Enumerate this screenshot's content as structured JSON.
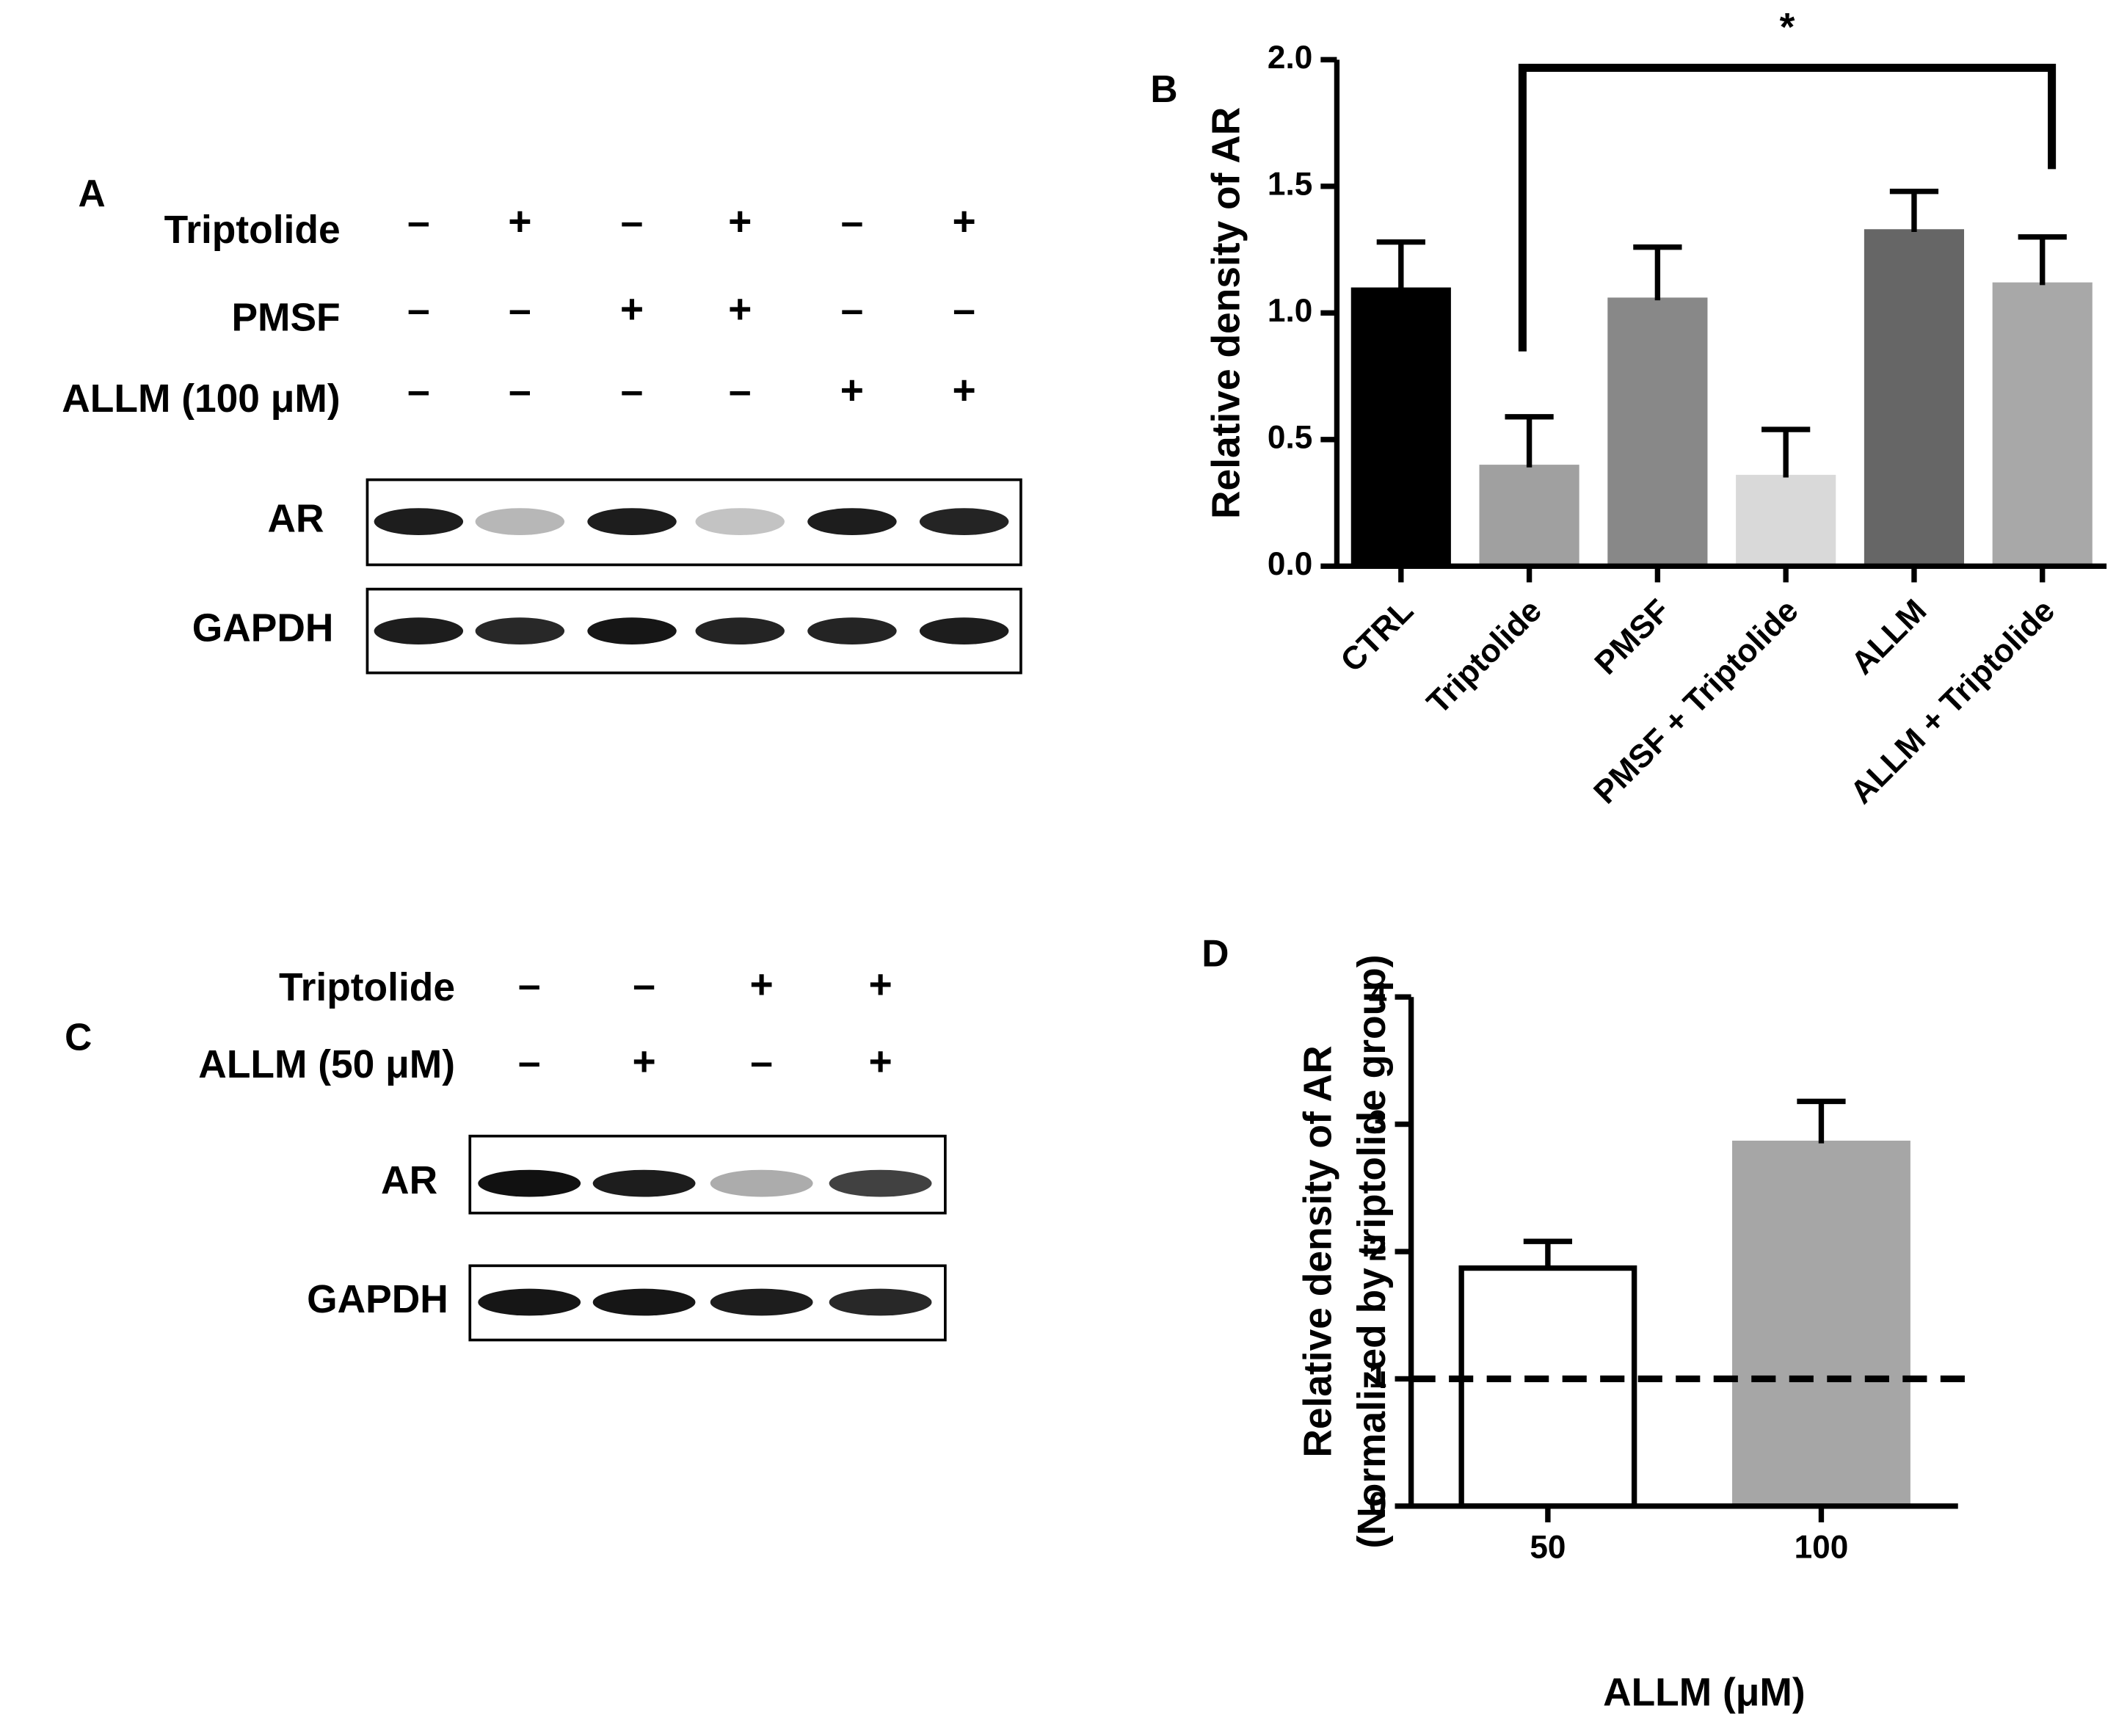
{
  "blot_a": {
    "panel": "A",
    "conditions": [
      {
        "label": "Triptolide",
        "signs": [
          "–",
          "+",
          "–",
          "+",
          "–",
          "+"
        ]
      },
      {
        "label": "PMSF",
        "signs": [
          "–",
          "–",
          "+",
          "+",
          "–",
          "–"
        ]
      },
      {
        "label": "ALLM (100 μM)",
        "signs": [
          "–",
          "–",
          "–",
          "–",
          "+",
          "+"
        ]
      }
    ],
    "bands": [
      "AR",
      "GAPDH"
    ]
  },
  "blot_c": {
    "panel": "C",
    "conditions": [
      {
        "label": "Triptolide",
        "signs": [
          "–",
          "–",
          "+",
          "+"
        ]
      },
      {
        "label": "ALLM (50 μM)",
        "signs": [
          "–",
          "+",
          "–",
          "+"
        ]
      }
    ],
    "bands": [
      "AR",
      "GAPDH"
    ]
  },
  "chart_data": [
    {
      "type": "bar",
      "panel": "B",
      "ylabel": "Relative density of AR",
      "categories": [
        "CTRL",
        "Triptolide",
        "PMSF",
        "PMSF + Triptolide",
        "ALLM",
        "ALLM + Triptolide"
      ],
      "values": [
        1.09,
        0.39,
        1.05,
        0.35,
        1.32,
        1.11
      ],
      "errors": [
        0.19,
        0.2,
        0.21,
        0.19,
        0.16,
        0.19
      ],
      "colors": [
        "#000000",
        "#a0a0a0",
        "#888888",
        "#d9d9d9",
        "#666666",
        "#a8a8a8"
      ],
      "edgecolors": [
        "#000000",
        "#a0a0a0",
        "#888888",
        "#d9d9d9",
        "#666666",
        "#a8a8a8"
      ],
      "ylim": [
        0,
        2
      ],
      "yticks": [
        {
          "value": 0,
          "label": "0.0"
        },
        0.5,
        {
          "value": 1,
          "label": "1.0"
        },
        1.5,
        {
          "value": 2,
          "label": "2.0"
        }
      ],
      "significance_label": "*"
    },
    {
      "type": "bar",
      "panel": "D",
      "ylabel": [
        "Relative density of AR",
        "(Normalized by triptolide group)"
      ],
      "xlabel": "ALLM (μM)",
      "categories": [
        "50",
        "100"
      ],
      "values": [
        1.87,
        2.85
      ],
      "errors": [
        0.21,
        0.33
      ],
      "colors": [
        "#ffffff",
        "#a6a6a6"
      ],
      "edgecolors": [
        "#000000",
        "#a6a6a6"
      ],
      "ylim": [
        0,
        4
      ],
      "yticks": [
        0,
        1,
        2,
        3,
        4
      ],
      "reference_line": 1
    }
  ]
}
